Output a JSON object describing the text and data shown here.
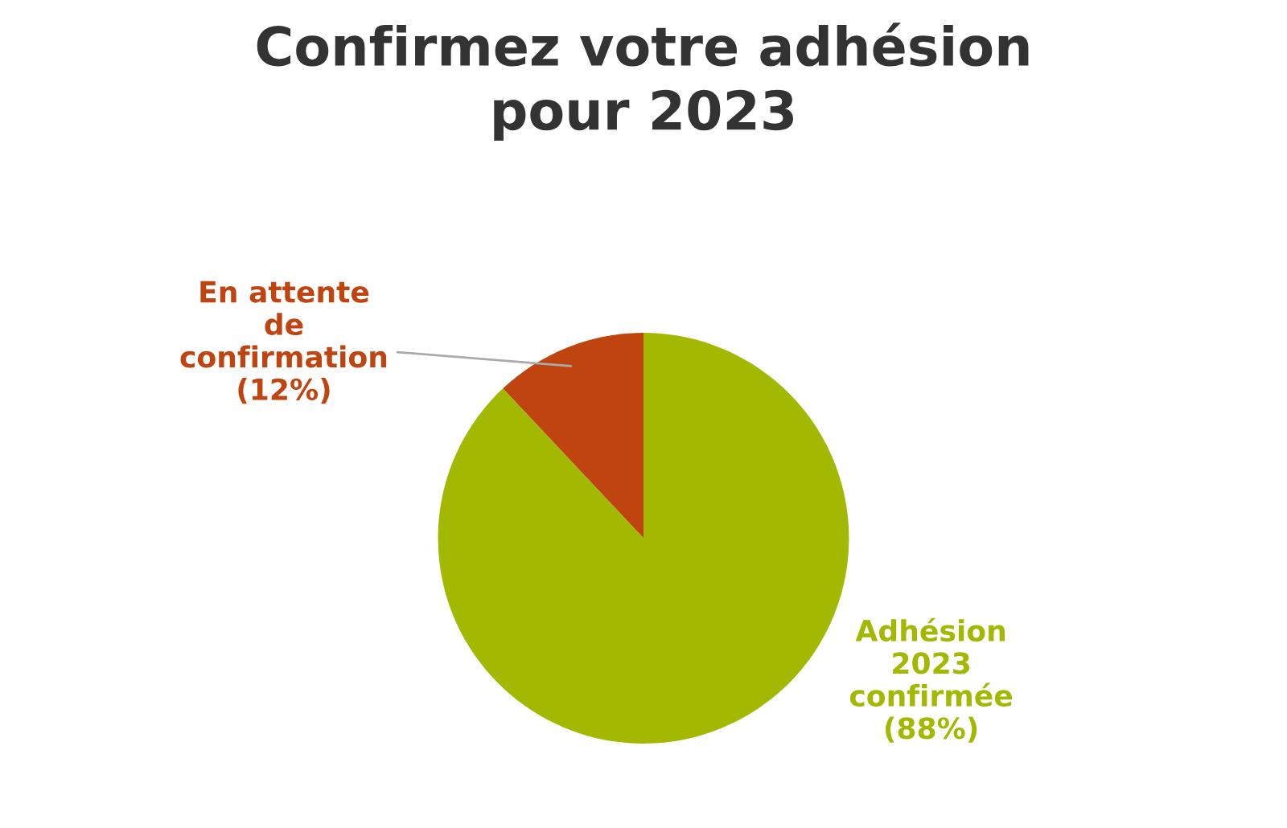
{
  "chart_data": {
    "type": "pie",
    "title": "Confirmez votre adhésion pour 2023",
    "categories": [
      "En attente de confirmation",
      "Adhésion 2023 confirmée"
    ],
    "values": [
      12,
      88
    ],
    "value_labels": [
      "(12%)",
      "(88%)"
    ],
    "colors": [
      "#c0440f",
      "#a3b800"
    ],
    "legend": false
  }
}
